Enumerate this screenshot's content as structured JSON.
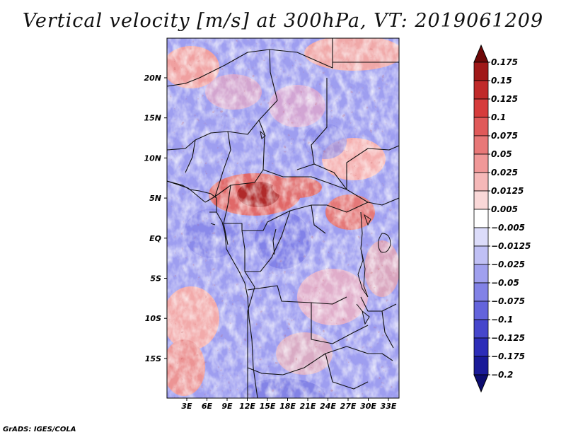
{
  "title": "Vertical velocity [m/s] at 300hPa, VT: 2019061209",
  "footer": "GrADS: IGES/COLA",
  "map": {
    "variable": "Vertical velocity",
    "units": "m/s",
    "level": "300hPa",
    "valid_time": "2019061209",
    "lat_labels": [
      "20N",
      "15N",
      "10N",
      "5N",
      "EQ",
      "5S",
      "10S",
      "15S"
    ],
    "lon_labels": [
      "3E",
      "6E",
      "9E",
      "12E",
      "15E",
      "18E",
      "21E",
      "24E",
      "27E",
      "30E",
      "33E"
    ]
  },
  "colorbar": {
    "labels": [
      "0.175",
      "0.15",
      "0.125",
      "0.1",
      "0.075",
      "0.05",
      "0.025",
      "0.0125",
      "0.005",
      "−0.005",
      "−0.0125",
      "−0.025",
      "−0.05",
      "−0.075",
      "−0.1",
      "−0.125",
      "−0.175",
      "−0.2"
    ],
    "colors": [
      "#6e0808",
      "#a01818",
      "#c02a2a",
      "#d63c3c",
      "#e05a5a",
      "#e87878",
      "#f09898",
      "#f5b8b8",
      "#fad8d8",
      "#ffffff",
      "#dcdcfa",
      "#c0c0f5",
      "#a0a0ee",
      "#8282e6",
      "#6464dc",
      "#4646cc",
      "#2d2db8",
      "#1a1a98",
      "#0c0c70"
    ]
  }
}
